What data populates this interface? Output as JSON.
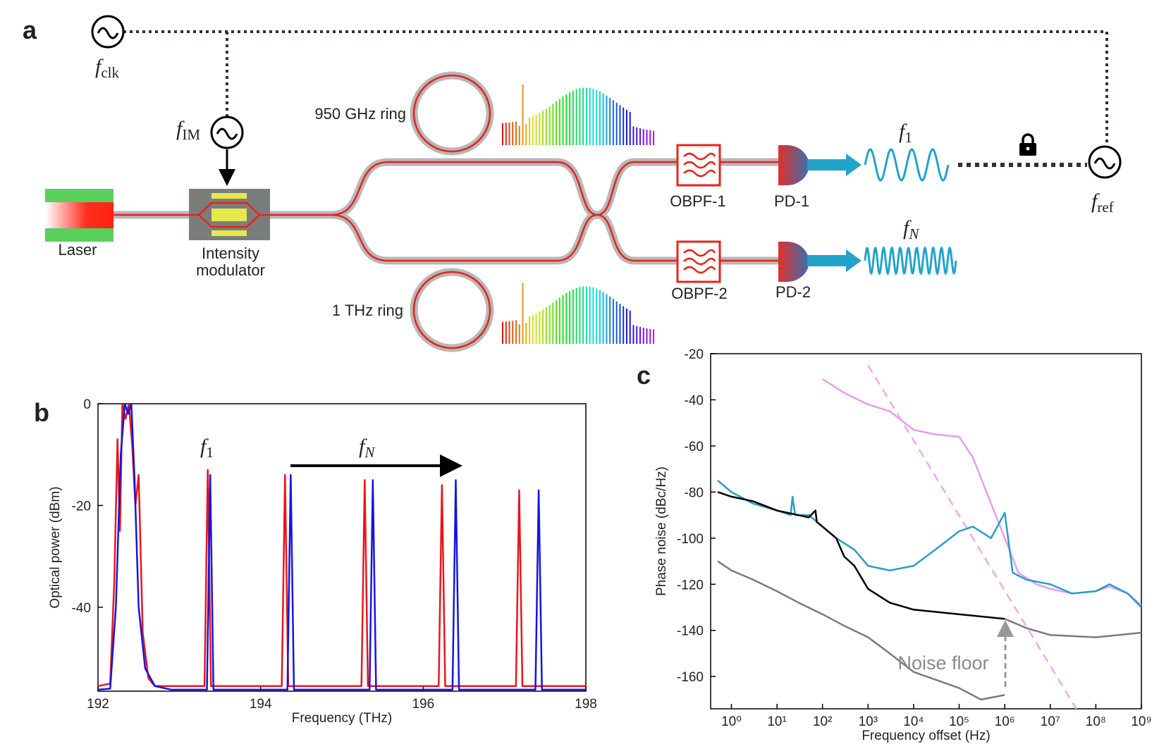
{
  "panel_labels": [
    "a",
    "b",
    "c"
  ],
  "diagram": {
    "clock": {
      "symbol": "f",
      "subscript": "clk"
    },
    "im_source": {
      "symbol": "f",
      "subscript": "IM"
    },
    "ring_950": "950 GHz ring",
    "ring_1thz": "1 THz ring",
    "laser": "Laser",
    "modulator": [
      "Intensity",
      "modulator"
    ],
    "filter_1": "OBPF-1",
    "filter_2": "OBPF-2",
    "detector_1": "PD-1",
    "detector_2": "PD-2",
    "signal_1": {
      "symbol": "f",
      "subscript": "1"
    },
    "signal_n": {
      "symbol": "f",
      "subscript": "N"
    },
    "reference": {
      "symbol": "f",
      "subscript": "ref"
    }
  },
  "chart_data": [
    {
      "type": "line",
      "xlabel": "Frequency (THz)",
      "ylabel": "Optical power (dBm)",
      "xlim": [
        192,
        198
      ],
      "xticks": [
        192,
        194,
        196,
        198
      ],
      "ylim": [
        -56.5,
        0
      ],
      "yticks": [
        0,
        -20,
        -40
      ],
      "annotations": [
        {
          "symbol": "f",
          "subscript": "1"
        },
        {
          "symbol": "f",
          "subscript": "N"
        }
      ],
      "series": [
        {
          "color": "#e8161a",
          "x": [
            192,
            192.15,
            192.2,
            192.24,
            192.27,
            192.3,
            192.34,
            192.38,
            192.42,
            192.46,
            192.5,
            192.55,
            192.62,
            192.7,
            193.31,
            193.35,
            193.39,
            194.26,
            194.3,
            194.34,
            195.24,
            195.28,
            195.32,
            196.19,
            196.23,
            196.27,
            197.14,
            197.18,
            197.22,
            198
          ],
          "values": [
            -55.5,
            -55,
            -35,
            -7,
            -25,
            0,
            -3,
            0,
            -8,
            -20,
            -14,
            -45,
            -54,
            -55.5,
            -55.5,
            -13,
            -55.5,
            -55.5,
            -14,
            -55.5,
            -55.5,
            -15,
            -55.5,
            -55.5,
            -16,
            -55.5,
            -55.5,
            -17,
            -55.5,
            -55.5
          ]
        },
        {
          "color": "#1515e0",
          "x": [
            192,
            192.15,
            192.22,
            192.28,
            192.33,
            192.37,
            192.41,
            192.45,
            192.5,
            192.58,
            192.7,
            192.9,
            193.34,
            193.38,
            193.42,
            194.33,
            194.37,
            194.41,
            195.34,
            195.38,
            195.42,
            196.36,
            196.4,
            196.44,
            197.38,
            197.42,
            197.46,
            198
          ],
          "values": [
            -56.2,
            -56,
            -40,
            -10,
            0,
            -2,
            0,
            -15,
            -40,
            -52,
            -55.5,
            -56.2,
            -56.2,
            -14,
            -56.2,
            -56.2,
            -14,
            -56.2,
            -56.2,
            -15,
            -56.2,
            -56.2,
            -15,
            -56.2,
            -56.2,
            -17,
            -56.2,
            -56.2
          ]
        }
      ]
    },
    {
      "type": "line",
      "xscale": "log",
      "xlabel": "Frequency offset (Hz)",
      "ylabel": "Phase noise (dBc/Hz)",
      "xlim": [
        0.35,
        1000000000
      ],
      "xticks": [
        {
          "value": 1,
          "label": "10⁰"
        },
        {
          "value": 10,
          "label": "10¹"
        },
        {
          "value": 100,
          "label": "10²"
        },
        {
          "value": 1000,
          "label": "10³"
        },
        {
          "value": 10000,
          "label": "10⁴"
        },
        {
          "value": 100000,
          "label": "10⁵"
        },
        {
          "value": 1000000,
          "label": "10⁶"
        },
        {
          "value": 10000000,
          "label": "10⁷"
        },
        {
          "value": 100000000,
          "label": "10⁸"
        },
        {
          "value": 1000000000,
          "label": "10⁹"
        }
      ],
      "ylim": [
        -174,
        -20
      ],
      "yticks": [
        -20,
        -40,
        -60,
        -80,
        -100,
        -120,
        -140,
        -160
      ],
      "annotations": [
        "Noise floor"
      ],
      "series": [
        {
          "color": "#f0a8f0",
          "dash": true,
          "x": [
            1000,
            40000000
          ],
          "values": [
            -25,
            -175
          ]
        },
        {
          "color": "#e89cf0",
          "x": [
            100,
            300,
            1000,
            3000,
            10000,
            30000,
            100000,
            200000,
            500000,
            1000000,
            2000000,
            5000000,
            10000000,
            30000000,
            100000000,
            200000000,
            500000000,
            1000000000
          ],
          "values": [
            -31,
            -37,
            -42,
            -45,
            -53,
            -55,
            -56,
            -65,
            -85,
            -100,
            -115,
            -120,
            -122,
            -124,
            -123,
            -121,
            -124,
            -129
          ]
        },
        {
          "color": "#2a9dc8",
          "x": [
            0.5,
            1,
            3,
            10,
            20,
            22,
            25,
            50,
            100,
            200,
            500,
            1000,
            3000,
            10000,
            30000,
            100000,
            200000,
            500000,
            1000000,
            1500000,
            3000000,
            10000000,
            30000000,
            100000000,
            200000000,
            500000000,
            1000000000
          ],
          "values": [
            -75,
            -80,
            -85,
            -88,
            -90,
            -82,
            -90,
            -90,
            -95,
            -100,
            -105,
            -112,
            -114,
            -112,
            -105,
            -97,
            -95,
            -100,
            -89,
            -115,
            -118,
            -120,
            -124,
            -123,
            -120,
            -124,
            -130
          ]
        },
        {
          "color": "#000000",
          "x": [
            0.5,
            1,
            3,
            10,
            50,
            70,
            75,
            100,
            200,
            300,
            500,
            1000,
            3000,
            10000,
            100000,
            1000000
          ],
          "values": [
            -80,
            -82,
            -84,
            -88,
            -91,
            -88,
            -93,
            -95,
            -100,
            -108,
            -112,
            -122,
            -128,
            -131,
            -133,
            -135
          ]
        },
        {
          "color": "#7a7a7a",
          "x": [
            0.5,
            1,
            3,
            10,
            30,
            100,
            300,
            1000,
            3000,
            10000,
            100000,
            300000,
            1000000,
            1000000,
            1000000,
            3000000,
            10000000,
            100000000,
            1000000000
          ],
          "values": [
            -110,
            -114,
            -118,
            -123,
            -128,
            -133,
            -138,
            -143,
            -150,
            -158,
            -165,
            -170,
            -168,
            null,
            -135,
            -139,
            -142,
            -143,
            -141
          ]
        }
      ]
    }
  ]
}
